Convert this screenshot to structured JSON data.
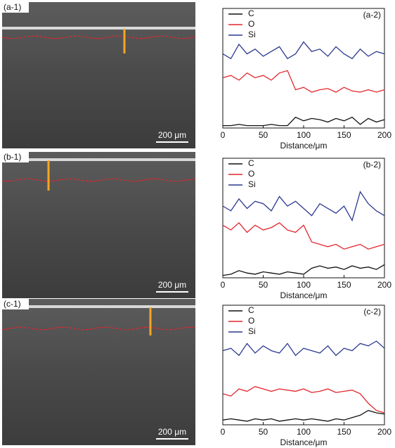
{
  "images": [
    {
      "label": "(a-1)",
      "scale_bar": "200 μm"
    },
    {
      "label": "(b-1)",
      "scale_bar": "200 μm"
    },
    {
      "label": "(c-1)",
      "scale_bar": "200 μm"
    }
  ],
  "chart_data": [
    {
      "type": "line",
      "panel_label": "(a-2)",
      "xlabel": "Distance/μm",
      "legend": "upper left",
      "xlim": [
        0,
        200
      ],
      "ylim": [
        0,
        100
      ],
      "xticks": [
        0,
        50,
        100,
        150,
        200
      ],
      "x": [
        0,
        10,
        20,
        30,
        40,
        50,
        60,
        70,
        80,
        90,
        100,
        110,
        120,
        130,
        140,
        150,
        160,
        170,
        180,
        190,
        200
      ],
      "series": [
        {
          "name": "C",
          "color": "#111111",
          "values": [
            2,
            2,
            3,
            2,
            2,
            2,
            3,
            2,
            2,
            9,
            6,
            8,
            7,
            5,
            8,
            6,
            9,
            3,
            8,
            5,
            7
          ]
        },
        {
          "name": "O",
          "color": "#e3262d",
          "values": [
            42,
            44,
            40,
            46,
            42,
            44,
            40,
            46,
            48,
            32,
            34,
            30,
            32,
            33,
            30,
            34,
            31,
            30,
            32,
            30,
            32
          ]
        },
        {
          "name": "Si",
          "color": "#2b3990",
          "values": [
            62,
            58,
            70,
            62,
            66,
            60,
            64,
            68,
            58,
            62,
            72,
            64,
            66,
            60,
            68,
            62,
            58,
            66,
            60,
            64,
            62
          ]
        }
      ]
    },
    {
      "type": "line",
      "panel_label": "(b-2)",
      "xlabel": "Distance/μm",
      "legend": "upper left",
      "xlim": [
        0,
        200
      ],
      "ylim": [
        0,
        100
      ],
      "xticks": [
        0,
        50,
        100,
        150,
        200
      ],
      "x": [
        0,
        10,
        20,
        30,
        40,
        50,
        60,
        70,
        80,
        90,
        100,
        110,
        120,
        130,
        140,
        150,
        160,
        170,
        180,
        190,
        200
      ],
      "series": [
        {
          "name": "C",
          "color": "#111111",
          "values": [
            2,
            3,
            6,
            4,
            3,
            5,
            4,
            3,
            5,
            4,
            3,
            8,
            10,
            8,
            9,
            7,
            10,
            8,
            9,
            7,
            11
          ]
        },
        {
          "name": "O",
          "color": "#e3262d",
          "values": [
            44,
            40,
            46,
            38,
            44,
            40,
            42,
            46,
            40,
            38,
            44,
            30,
            28,
            26,
            28,
            24,
            26,
            28,
            24,
            26,
            28
          ]
        },
        {
          "name": "Si",
          "color": "#2b3990",
          "values": [
            60,
            56,
            66,
            58,
            64,
            62,
            56,
            68,
            60,
            64,
            58,
            52,
            62,
            58,
            54,
            60,
            48,
            72,
            62,
            56,
            52
          ]
        }
      ]
    },
    {
      "type": "line",
      "panel_label": "(c-2)",
      "xlabel": "Distance/μm",
      "legend": "upper left",
      "xlim": [
        0,
        200
      ],
      "ylim": [
        0,
        100
      ],
      "xticks": [
        0,
        50,
        100,
        150,
        200
      ],
      "x": [
        0,
        10,
        20,
        30,
        40,
        50,
        60,
        70,
        80,
        90,
        100,
        110,
        120,
        130,
        140,
        150,
        160,
        170,
        180,
        190,
        200
      ],
      "series": [
        {
          "name": "C",
          "color": "#111111",
          "values": [
            4,
            5,
            4,
            3,
            5,
            4,
            5,
            3,
            4,
            5,
            4,
            5,
            4,
            3,
            5,
            4,
            6,
            8,
            12,
            10,
            9
          ]
        },
        {
          "name": "O",
          "color": "#e3262d",
          "values": [
            26,
            24,
            30,
            28,
            32,
            30,
            28,
            30,
            29,
            28,
            30,
            27,
            28,
            30,
            27,
            28,
            29,
            26,
            18,
            12,
            10
          ]
        },
        {
          "name": "Si",
          "color": "#2b3990",
          "values": [
            62,
            64,
            58,
            68,
            60,
            66,
            62,
            60,
            68,
            58,
            64,
            62,
            60,
            66,
            58,
            64,
            62,
            68,
            66,
            70,
            64
          ]
        }
      ]
    }
  ]
}
